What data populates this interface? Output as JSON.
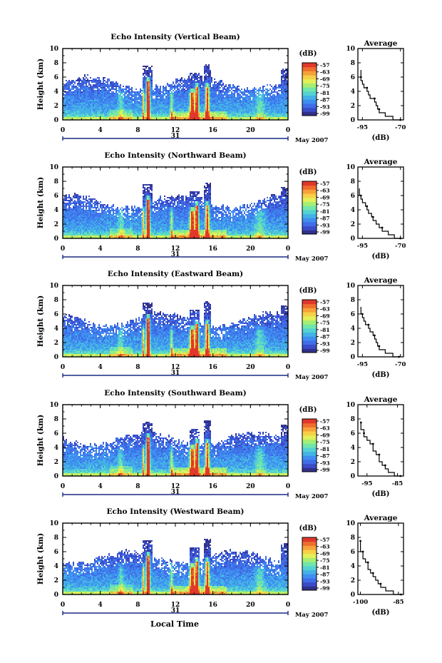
{
  "figure": {
    "x_label": "Local Time",
    "date_label": "May 2007",
    "day_label": "31",
    "avg_title": "Average",
    "avg_xlabel": "(dB)",
    "colorbar_unit": "(dB)",
    "colorbar_ticks": [
      "-57",
      "-63",
      "-69",
      "-75",
      "-81",
      "-87",
      "-93",
      "-99"
    ],
    "colorscale": [
      "#31318c",
      "#3a4cc8",
      "#3f6ee8",
      "#3f8ef0",
      "#44b2e6",
      "#54d2d2",
      "#72e6a8",
      "#a6ee72",
      "#e2f05a",
      "#f6d048",
      "#f6a23a",
      "#ee6e2e",
      "#e0382a"
    ]
  },
  "chart_data": [
    {
      "type": "heatmap",
      "title": "Echo Intensity (Vertical Beam)",
      "xlabel": "",
      "ylabel": "Height (km)",
      "x_ticks": [
        "0",
        "4",
        "8",
        "12",
        "16",
        "20",
        "0"
      ],
      "xlim": [
        0,
        24
      ],
      "y_ticks": [
        "0",
        "2",
        "4",
        "6",
        "8",
        "10"
      ],
      "ylim": [
        0,
        10
      ],
      "cbar_range_db": [
        -99,
        -57
      ],
      "average_profile": {
        "xlabel": "(dB)",
        "x_ticks": [
          "-95",
          "-70"
        ],
        "xlim": [
          -98,
          -68
        ],
        "height_km": [
          0,
          0.5,
          1,
          1.5,
          2,
          2.5,
          3,
          3.5,
          4,
          4.5,
          5,
          5.5,
          6,
          6.5,
          7
        ],
        "value_db": [
          -70,
          -75,
          -80,
          -84,
          -85,
          -86,
          -87,
          -90,
          -91,
          -92,
          -94,
          -95,
          -96,
          -96,
          -96
        ]
      }
    },
    {
      "type": "heatmap",
      "title": "Echo Intensity (Northward Beam)",
      "xlabel": "",
      "ylabel": "Height (km)",
      "x_ticks": [
        "0",
        "4",
        "8",
        "12",
        "16",
        "20",
        "0"
      ],
      "xlim": [
        0,
        24
      ],
      "y_ticks": [
        "0",
        "2",
        "4",
        "6",
        "8",
        "10"
      ],
      "ylim": [
        0,
        10
      ],
      "cbar_range_db": [
        -99,
        -57
      ],
      "average_profile": {
        "xlabel": "(dB)",
        "x_ticks": [
          "-95",
          "-70"
        ],
        "xlim": [
          -98,
          -68
        ],
        "height_km": [
          0,
          0.5,
          1,
          1.5,
          2,
          2.5,
          3,
          3.5,
          4,
          4.5,
          5,
          5.5,
          6,
          6.5,
          7
        ],
        "value_db": [
          -70,
          -74,
          -78,
          -82,
          -84,
          -86,
          -88,
          -89,
          -91,
          -92,
          -93,
          -95,
          -96,
          -97,
          -97
        ]
      }
    },
    {
      "type": "heatmap",
      "title": "Echo Intensity (Eastward Beam)",
      "xlabel": "",
      "ylabel": "Height (km)",
      "x_ticks": [
        "0",
        "4",
        "8",
        "12",
        "16",
        "20",
        "0"
      ],
      "xlim": [
        0,
        24
      ],
      "y_ticks": [
        "0",
        "2",
        "4",
        "6",
        "8",
        "10"
      ],
      "ylim": [
        0,
        10
      ],
      "cbar_range_db": [
        -99,
        -57
      ],
      "average_profile": {
        "xlabel": "(dB)",
        "x_ticks": [
          "-95",
          "-70"
        ],
        "xlim": [
          -98,
          -68
        ],
        "height_km": [
          0,
          0.5,
          1,
          1.5,
          2,
          2.5,
          3,
          3.5,
          4,
          4.5,
          5,
          5.5,
          6,
          6.5,
          7
        ],
        "value_db": [
          -71,
          -75,
          -80,
          -84,
          -85,
          -86,
          -87,
          -88,
          -90,
          -91,
          -93,
          -94,
          -95,
          -96,
          -96
        ]
      }
    },
    {
      "type": "heatmap",
      "title": "Echo Intensity (Southward Beam)",
      "xlabel": "",
      "ylabel": "Height (km)",
      "x_ticks": [
        "0",
        "4",
        "8",
        "12",
        "16",
        "20",
        "0"
      ],
      "xlim": [
        0,
        24
      ],
      "y_ticks": [
        "0",
        "2",
        "4",
        "6",
        "8",
        "10"
      ],
      "ylim": [
        0,
        10
      ],
      "cbar_range_db": [
        -99,
        -57
      ],
      "average_profile": {
        "xlabel": "(dB)",
        "x_ticks": [
          "-95",
          "-85"
        ],
        "xlim": [
          -98,
          -83
        ],
        "height_km": [
          0,
          0.5,
          1,
          1.5,
          2,
          2.5,
          3,
          3.5,
          4,
          4.5,
          5,
          5.5,
          6,
          6.5,
          7,
          7.5
        ],
        "value_db": [
          -84,
          -86,
          -88,
          -89,
          -90,
          -91,
          -91,
          -92,
          -93,
          -93,
          -94,
          -95,
          -96,
          -96,
          -97,
          -97
        ]
      }
    },
    {
      "type": "heatmap",
      "title": "Echo Intensity (Westward Beam)",
      "xlabel": "",
      "ylabel": "Height (km)",
      "x_ticks": [
        "0",
        "4",
        "8",
        "12",
        "16",
        "20",
        "0"
      ],
      "xlim": [
        0,
        24
      ],
      "y_ticks": [
        "0",
        "2",
        "4",
        "6",
        "8",
        "10"
      ],
      "ylim": [
        0,
        10
      ],
      "cbar_range_db": [
        -99,
        -57
      ],
      "average_profile": {
        "xlabel": "(dB)",
        "x_ticks": [
          "-100",
          "-85"
        ],
        "xlim": [
          -101,
          -83
        ],
        "height_km": [
          0,
          0.5,
          1,
          1.5,
          2,
          2.5,
          3,
          3.5,
          4,
          4.5,
          5,
          5.5,
          6,
          6.5,
          7,
          7.5
        ],
        "value_db": [
          -84,
          -87,
          -90,
          -92,
          -93,
          -94,
          -95,
          -96,
          -97,
          -97,
          -98,
          -99,
          -99,
          -100,
          -100,
          -100
        ]
      }
    }
  ]
}
